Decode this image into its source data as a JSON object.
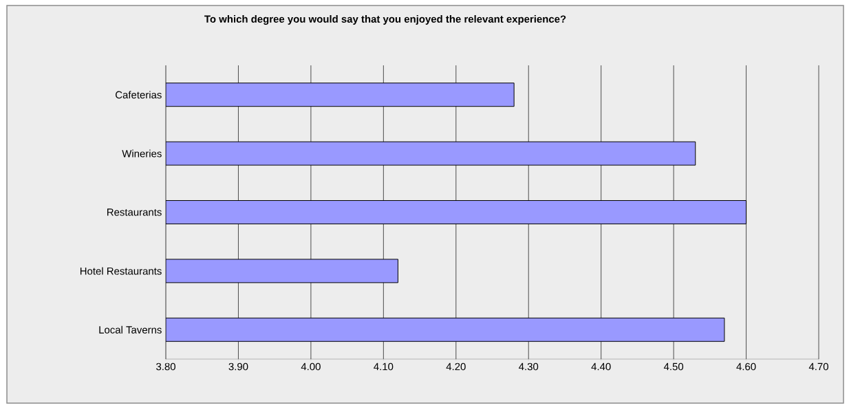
{
  "chart_data": {
    "type": "bar",
    "orientation": "horizontal",
    "title": "To which degree you would say that you enjoyed the relevant experience?",
    "categories": [
      "Cafeterias",
      "Wineries",
      "Restaurants",
      "Hotel Restaurants",
      "Local Taverns"
    ],
    "values": [
      4.28,
      4.53,
      4.6,
      4.12,
      4.57
    ],
    "color": "#9999ff",
    "xlim": [
      3.8,
      4.7
    ],
    "xticks": [
      {
        "value": 3.8,
        "label": "3.80"
      },
      {
        "value": 3.9,
        "label": "3.90"
      },
      {
        "value": 4.0,
        "label": "4.00"
      },
      {
        "value": 4.1,
        "label": "4.10"
      },
      {
        "value": 4.2,
        "label": "4.20"
      },
      {
        "value": 4.3,
        "label": "4.30"
      },
      {
        "value": 4.4,
        "label": "4.40"
      },
      {
        "value": 4.5,
        "label": "4.50"
      },
      {
        "value": 4.6,
        "label": "4.60"
      },
      {
        "value": 4.7,
        "label": "4.70"
      }
    ],
    "grid": "x"
  }
}
